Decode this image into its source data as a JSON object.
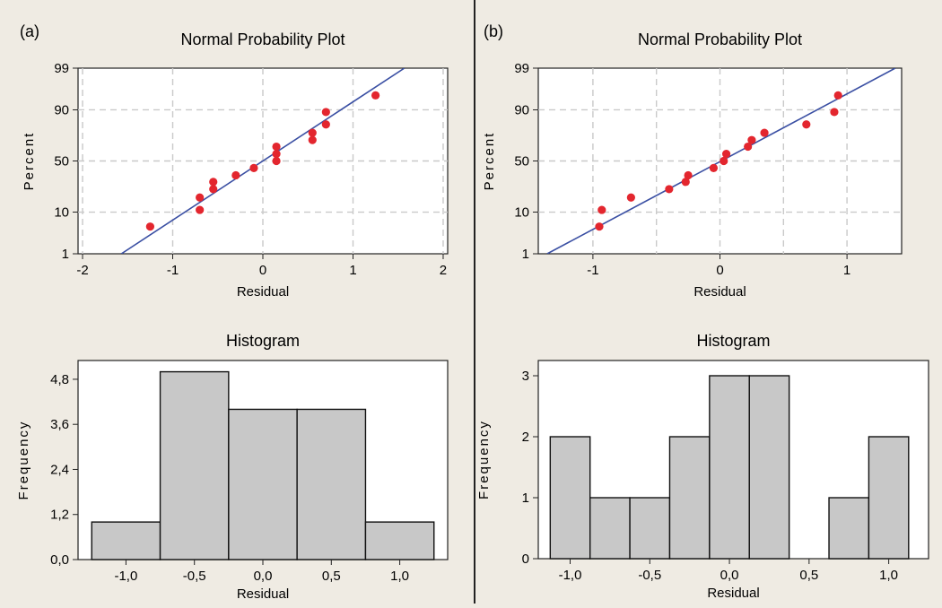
{
  "panels": [
    {
      "label": "(a)"
    },
    {
      "label": "(b)"
    }
  ],
  "colors": {
    "background": "#efebe3",
    "plot_area": "#ffffff",
    "fit_line": "#3a4fa3",
    "point": "#e3262e",
    "bar_fill": "#c8c8c8",
    "grid": "#c9c9c9"
  },
  "chart_data": [
    {
      "panel": "(a)",
      "type": "scatter",
      "title": "Normal Probability Plot",
      "xlabel": "Residual",
      "ylabel": "Percent",
      "y_scale": "normal-probability",
      "grid": true,
      "xlim": [
        -2.05,
        2.05
      ],
      "ylim": [
        1,
        99
      ],
      "xticks": [
        -2,
        -1,
        0,
        1,
        2
      ],
      "xtick_labels": [
        "-2",
        "-1",
        "0",
        "1",
        "2"
      ],
      "yticks": [
        1,
        10,
        50,
        90,
        99
      ],
      "ytick_labels": [
        "1",
        "10",
        "50",
        "90",
        "99"
      ],
      "fit_line": {
        "x": [
          -1.57,
          1.57
        ],
        "y": [
          1,
          99
        ]
      },
      "points": [
        {
          "x": -1.25,
          "y": 5
        },
        {
          "x": -0.7,
          "y": 11
        },
        {
          "x": -0.7,
          "y": 18
        },
        {
          "x": -0.55,
          "y": 24
        },
        {
          "x": -0.55,
          "y": 30
        },
        {
          "x": -0.3,
          "y": 36
        },
        {
          "x": -0.1,
          "y": 43
        },
        {
          "x": 0.15,
          "y": 50
        },
        {
          "x": 0.15,
          "y": 57
        },
        {
          "x": 0.15,
          "y": 64
        },
        {
          "x": 0.55,
          "y": 70
        },
        {
          "x": 0.55,
          "y": 76
        },
        {
          "x": 0.7,
          "y": 82
        },
        {
          "x": 0.7,
          "y": 89
        },
        {
          "x": 1.25,
          "y": 95
        }
      ]
    },
    {
      "panel": "(a)",
      "type": "bar",
      "title": "Histogram",
      "xlabel": "Residual",
      "ylabel": "Frequency",
      "grid": false,
      "xlim": [
        -1.35,
        1.35
      ],
      "ylim": [
        0,
        5.3
      ],
      "xticks": [
        -1.0,
        -0.5,
        0.0,
        0.5,
        1.0
      ],
      "xtick_labels": [
        "-1,0",
        "-0,5",
        "0,0",
        "0,5",
        "1,0"
      ],
      "yticks": [
        0,
        1.2,
        2.4,
        3.6,
        4.8
      ],
      "ytick_labels": [
        "0,0",
        "1,2",
        "2,4",
        "3,6",
        "4,8"
      ],
      "bins": [
        {
          "from": -1.25,
          "to": -0.75,
          "count": 1
        },
        {
          "from": -0.75,
          "to": -0.25,
          "count": 5
        },
        {
          "from": -0.25,
          "to": 0.25,
          "count": 4
        },
        {
          "from": 0.25,
          "to": 0.75,
          "count": 4
        },
        {
          "from": 0.75,
          "to": 1.25,
          "count": 1
        }
      ]
    },
    {
      "panel": "(b)",
      "type": "scatter",
      "title": "Normal Probability Plot",
      "xlabel": "Residual",
      "ylabel": "Percent",
      "y_scale": "normal-probability",
      "grid": true,
      "xlim": [
        -1.43,
        1.43
      ],
      "ylim": [
        1,
        99
      ],
      "xticks": [
        -1,
        0,
        1
      ],
      "xtick_labels": [
        "-1",
        "0",
        "1"
      ],
      "vgrid": [
        -1,
        -0.5,
        0,
        0.5,
        1
      ],
      "yticks": [
        1,
        10,
        50,
        90,
        99
      ],
      "ytick_labels": [
        "1",
        "10",
        "50",
        "90",
        "99"
      ],
      "fit_line": {
        "x": [
          -1.36,
          1.38
        ],
        "y": [
          1,
          99
        ]
      },
      "points": [
        {
          "x": -0.95,
          "y": 5
        },
        {
          "x": -0.93,
          "y": 11
        },
        {
          "x": -0.7,
          "y": 18
        },
        {
          "x": -0.4,
          "y": 24
        },
        {
          "x": -0.27,
          "y": 30
        },
        {
          "x": -0.25,
          "y": 36
        },
        {
          "x": -0.05,
          "y": 43
        },
        {
          "x": 0.03,
          "y": 50
        },
        {
          "x": 0.05,
          "y": 57
        },
        {
          "x": 0.22,
          "y": 64
        },
        {
          "x": 0.25,
          "y": 70
        },
        {
          "x": 0.35,
          "y": 76
        },
        {
          "x": 0.68,
          "y": 82
        },
        {
          "x": 0.9,
          "y": 89
        },
        {
          "x": 0.93,
          "y": 95
        }
      ]
    },
    {
      "panel": "(b)",
      "type": "bar",
      "title": "Histogram",
      "xlabel": "Residual",
      "ylabel": "Frequency",
      "grid": false,
      "xlim": [
        -1.2,
        1.25
      ],
      "ylim": [
        0,
        3.25
      ],
      "xticks": [
        -1.0,
        -0.5,
        0.0,
        0.5,
        1.0
      ],
      "xtick_labels": [
        "-1,0",
        "-0,5",
        "0,0",
        "0,5",
        "1,0"
      ],
      "yticks": [
        0,
        1,
        2,
        3
      ],
      "ytick_labels": [
        "0",
        "1",
        "2",
        "3"
      ],
      "bins": [
        {
          "from": -1.125,
          "to": -0.875,
          "count": 2
        },
        {
          "from": -0.875,
          "to": -0.625,
          "count": 1
        },
        {
          "from": -0.625,
          "to": -0.375,
          "count": 1
        },
        {
          "from": -0.375,
          "to": -0.125,
          "count": 2
        },
        {
          "from": -0.125,
          "to": 0.125,
          "count": 3
        },
        {
          "from": 0.125,
          "to": 0.375,
          "count": 3
        },
        {
          "from": 0.375,
          "to": 0.625,
          "count": 0
        },
        {
          "from": 0.625,
          "to": 0.875,
          "count": 1
        },
        {
          "from": 0.875,
          "to": 1.125,
          "count": 2
        }
      ]
    }
  ]
}
